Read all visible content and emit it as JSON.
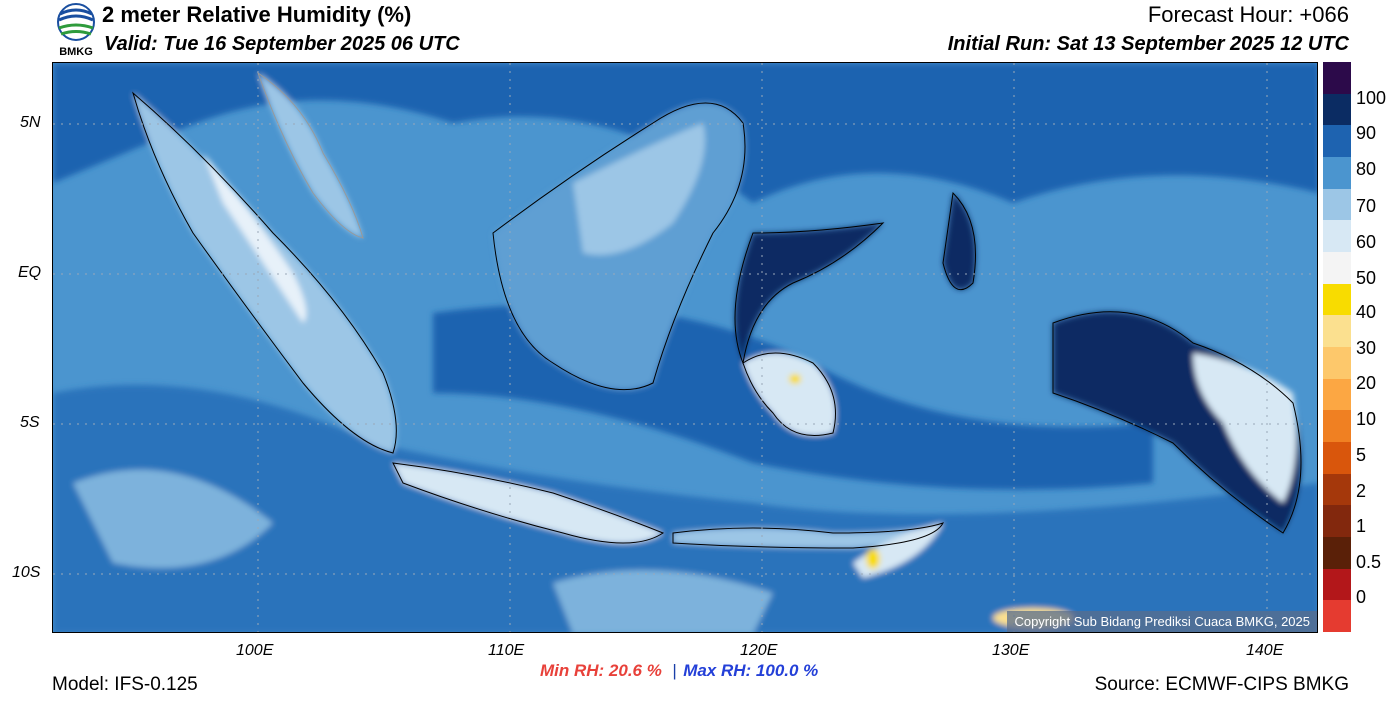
{
  "header": {
    "title": "2 meter Relative Humidity (%)",
    "valid": "Valid: Tue 16 September 2025 06 UTC",
    "forecast_hour": "Forecast Hour: +066",
    "initial_run": "Initial Run: Sat 13 September 2025 12 UTC",
    "logo_text": "BMKG"
  },
  "map": {
    "lat_labels": [
      "5N",
      "EQ",
      "5S",
      "10S"
    ],
    "lon_labels": [
      "100E",
      "110E",
      "120E",
      "130E",
      "140E"
    ],
    "copyright": "Copyright Sub Bidang Prediksi Cuaca BMKG, 2025"
  },
  "colorbar": {
    "labels": [
      "100",
      "90",
      "80",
      "70",
      "60",
      "50",
      "40",
      "30",
      "20",
      "10",
      "5",
      "2",
      "1",
      "0.5",
      "0"
    ],
    "colors": [
      "#2c0a4a",
      "#0b2c63",
      "#1e63b0",
      "#4b95cf",
      "#9cc6e6",
      "#d7e8f4",
      "#f4f4f4",
      "#f8dc00",
      "#fbe08f",
      "#fdc86b",
      "#fca743",
      "#f08022",
      "#d9560c",
      "#a5380b",
      "#82280d",
      "#5a2008",
      "#b3171a",
      "#e53b30"
    ]
  },
  "stats": {
    "min_rh": "Min RH:  20.6 %",
    "separator": "|",
    "max_rh": "Max RH: 100.0 %"
  },
  "footer": {
    "model": "Model: IFS-0.125",
    "source": "Source: ECMWF-CIPS BMKG"
  }
}
